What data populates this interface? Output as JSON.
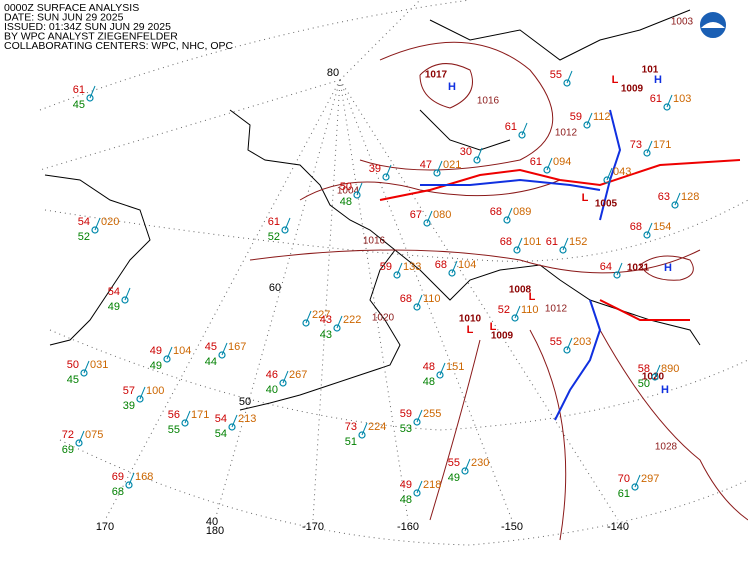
{
  "header": {
    "lines": [
      "0000Z SURFACE ANALYSIS",
      "DATE: SUN JUN 29 2025",
      "ISSUED: 01:34Z SUN JUN 29 2025",
      "BY WPC ANALYST ZIEGENFELDER",
      "COLLABORATING CENTERS: WPC, NHC, OPC"
    ]
  },
  "grid_labels": [
    "80",
    "60",
    "50",
    "40",
    "170",
    "180",
    "-170",
    "-160",
    "-150",
    "-140"
  ],
  "pressure_centers": [
    {
      "letter": "H",
      "value": "1017"
    },
    {
      "letter": "L",
      "value": "1009"
    },
    {
      "letter": "H",
      "value": "101"
    },
    {
      "letter": "L",
      "value": "1005"
    },
    {
      "letter": "H",
      "value": "1021"
    },
    {
      "letter": "L",
      "value": "1008"
    },
    {
      "letter": "L",
      "value": "1010"
    },
    {
      "letter": "L",
      "value": "1009"
    },
    {
      "letter": "H",
      "value": "1020"
    }
  ],
  "isobar_labels": [
    "1003",
    "1016",
    "1012",
    "1004",
    "1016",
    "1020",
    "1012",
    "1028"
  ],
  "stations": [
    {
      "temp": "61",
      "dew": "45"
    },
    {
      "temp": "54",
      "press": "020",
      "dew": "52"
    },
    {
      "temp": "54",
      "dew": "49"
    },
    {
      "temp": "50",
      "press": "031",
      "dew": "45"
    },
    {
      "temp": "57",
      "press": "100",
      "dew": "39"
    },
    {
      "temp": "72",
      "press": "075",
      "dew": "69"
    },
    {
      "temp": "69",
      "press": "168",
      "dew": "68"
    },
    {
      "temp": "56",
      "press": "171",
      "dew": "55"
    },
    {
      "temp": "54",
      "press": "213",
      "dew": "54"
    },
    {
      "temp": "49",
      "press": "104",
      "dew": "49"
    },
    {
      "temp": "45",
      "press": "167",
      "dew": "44"
    },
    {
      "temp": "46",
      "press": "267",
      "dew": "40"
    },
    {
      "temp": "61",
      "dew": "52"
    },
    {
      "press": "227"
    },
    {
      "temp": "43",
      "press": "222",
      "dew": "43"
    },
    {
      "temp": "73",
      "press": "224",
      "dew": "51"
    },
    {
      "temp": "59",
      "press": "255",
      "dew": "53"
    },
    {
      "temp": "48",
      "press": "151",
      "dew": "48"
    },
    {
      "temp": "49",
      "press": "218",
      "dew": "48"
    },
    {
      "temp": "55",
      "press": "230",
      "dew": "49"
    },
    {
      "temp": "70",
      "press": "297",
      "dew": "61"
    },
    {
      "temp": "58",
      "press": "890",
      "dew": "50"
    },
    {
      "temp": "39"
    },
    {
      "temp": "50",
      "dew": "48"
    },
    {
      "temp": "67",
      "press": "080"
    },
    {
      "temp": "47",
      "press": "021"
    },
    {
      "temp": "30"
    },
    {
      "temp": "61",
      "press": "094"
    },
    {
      "temp": "68",
      "press": "089"
    },
    {
      "temp": "68",
      "press": "101"
    },
    {
      "temp": "61",
      "press": "152"
    },
    {
      "press": "043"
    },
    {
      "temp": "73",
      "press": "171"
    },
    {
      "temp": "63",
      "press": "128"
    },
    {
      "temp": "68",
      "press": "154"
    },
    {
      "temp": "64"
    },
    {
      "temp": "59",
      "press": "112"
    },
    {
      "temp": "55"
    },
    {
      "temp": "61"
    },
    {
      "temp": "59",
      "press": "133"
    },
    {
      "temp": "68",
      "press": "110"
    },
    {
      "temp": "68",
      "press": "104"
    },
    {
      "temp": "52",
      "press": "110"
    },
    {
      "temp": "55",
      "press": "203"
    },
    {
      "temp": "61",
      "press": "103"
    }
  ]
}
